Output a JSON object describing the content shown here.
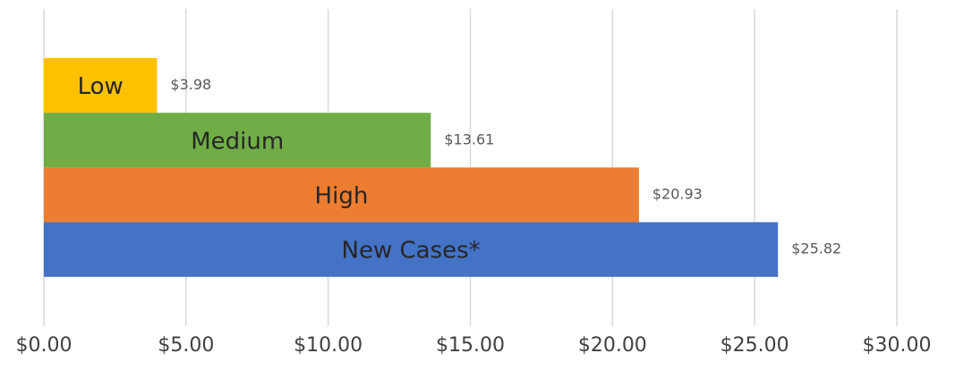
{
  "chart_data": {
    "type": "hbar",
    "categories": [
      "Low",
      "Medium",
      "High",
      "New Cases*"
    ],
    "values": [
      3.98,
      13.61,
      20.93,
      25.82
    ],
    "value_labels": [
      "$3.98",
      "$13.61",
      "$20.93",
      "$25.82"
    ],
    "colors": [
      "#ffc000",
      "#70ad47",
      "#ed7d31",
      "#4472c4"
    ],
    "xlim": [
      0,
      30
    ],
    "xticks": [
      {
        "value": 0,
        "label": "$0.00"
      },
      {
        "value": 5,
        "label": "$5.00"
      },
      {
        "value": 10,
        "label": "$10.00"
      },
      {
        "value": 15,
        "label": "$15.00"
      },
      {
        "value": 20,
        "label": "$20.00"
      },
      {
        "value": 25,
        "label": "$25.00"
      },
      {
        "value": 30,
        "label": "$30.00"
      }
    ],
    "grid": true
  }
}
